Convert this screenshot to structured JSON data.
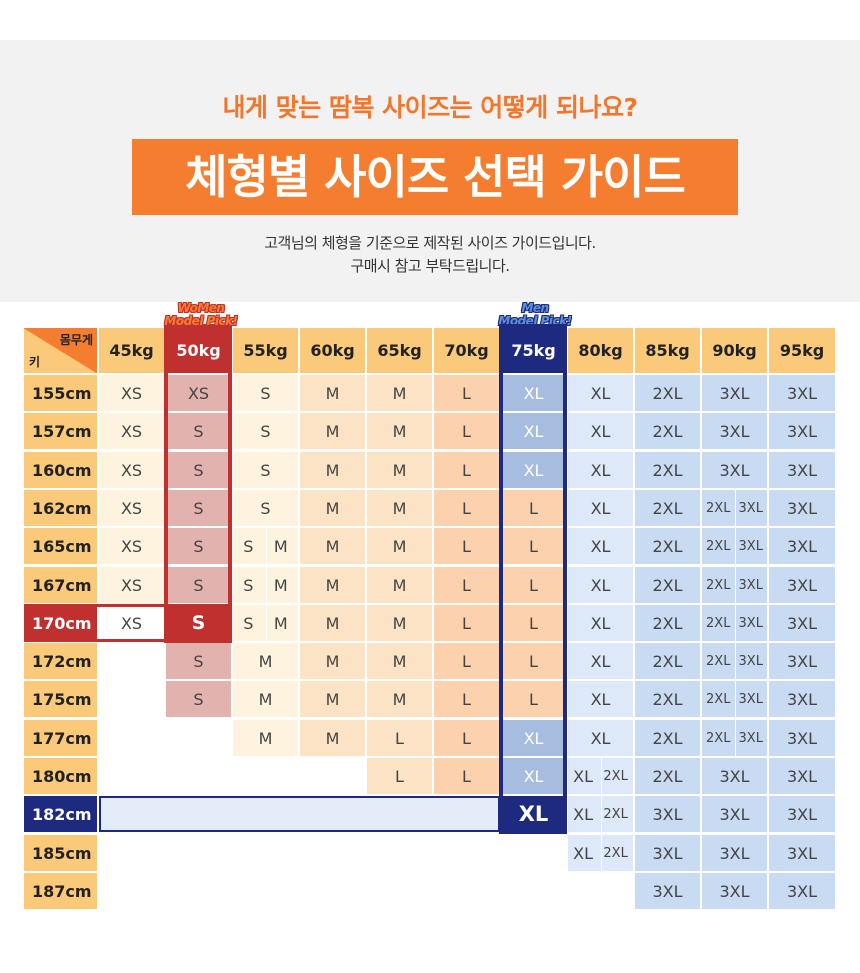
{
  "header": {
    "question": "내게 맞는 땀복 사이즈는 어떻게 되나요?",
    "title": "체형별 사이즈 선택 가이드",
    "desc_line1": "고객님의 체형을 기준으로 제작된 사이즈 가이드입니다.",
    "desc_line2": "구매시 참고 부탁드립니다."
  },
  "table": {
    "corner_weight_label": "몸무게",
    "corner_height_label": "키",
    "weights": [
      "45kg",
      "50kg",
      "55kg",
      "60kg",
      "65kg",
      "70kg",
      "75kg",
      "80kg",
      "85kg",
      "90kg",
      "95kg"
    ],
    "heights": [
      "155cm",
      "157cm",
      "160cm",
      "162cm",
      "165cm",
      "167cm",
      "170cm",
      "172cm",
      "175cm",
      "177cm",
      "180cm",
      "182cm",
      "185cm",
      "187cm"
    ],
    "women_pick": {
      "line1": "WoMen",
      "line2": "Model Pick!",
      "weight": "50kg",
      "height": "170cm",
      "size": "S"
    },
    "men_pick": {
      "line1": "Men",
      "line2": "Model Pick!",
      "weight": "75kg",
      "height": "182cm",
      "size": "XL"
    },
    "rows": [
      [
        "XS",
        "XS",
        "S",
        "M",
        "M",
        "L",
        "XL",
        "XL",
        "2XL",
        "3XL",
        "3XL"
      ],
      [
        "XS",
        "S",
        "S",
        "M",
        "M",
        "L",
        "XL",
        "XL",
        "2XL",
        "3XL",
        "3XL"
      ],
      [
        "XS",
        "S",
        "S",
        "M",
        "M",
        "L",
        "XL",
        "XL",
        "2XL",
        "3XL",
        "3XL"
      ],
      [
        "XS",
        "S",
        "S",
        "M",
        "M",
        "L",
        "L",
        "XL",
        "2XL",
        "2XL 3XL",
        "3XL"
      ],
      [
        "XS",
        "S",
        "S M",
        "M",
        "M",
        "L",
        "L",
        "XL",
        "2XL",
        "2XL 3XL",
        "3XL"
      ],
      [
        "XS",
        "S",
        "S M",
        "M",
        "M",
        "L",
        "L",
        "XL",
        "2XL",
        "2XL 3XL",
        "3XL"
      ],
      [
        "XS",
        "S",
        "S M",
        "M",
        "M",
        "L",
        "L",
        "XL",
        "2XL",
        "2XL 3XL",
        "3XL"
      ],
      [
        "",
        "S",
        "M",
        "M",
        "M",
        "L",
        "L",
        "XL",
        "2XL",
        "2XL 3XL",
        "3XL"
      ],
      [
        "",
        "S",
        "M",
        "M",
        "M",
        "L",
        "L",
        "XL",
        "2XL",
        "2XL 3XL",
        "3XL"
      ],
      [
        "",
        "",
        "M",
        "M",
        "L",
        "L",
        "XL",
        "XL",
        "2XL",
        "2XL 3XL",
        "3XL"
      ],
      [
        "",
        "",
        "",
        "",
        "L",
        "L",
        "XL",
        "XL 2XL",
        "2XL",
        "3XL",
        "3XL"
      ],
      [
        "",
        "",
        "",
        "",
        "",
        "",
        "XL",
        "XL 2XL",
        "3XL",
        "3XL",
        "3XL"
      ],
      [
        "",
        "",
        "",
        "",
        "",
        "",
        "",
        "XL 2XL",
        "3XL",
        "3XL",
        "3XL"
      ],
      [
        "",
        "",
        "",
        "",
        "",
        "",
        "",
        "",
        "3XL",
        "3XL",
        "3XL"
      ]
    ]
  },
  "colors": {
    "orange": "#f47d2f",
    "header_cell": "#fbc97a",
    "women_red": "#c0302f",
    "men_navy": "#1d2a80"
  }
}
